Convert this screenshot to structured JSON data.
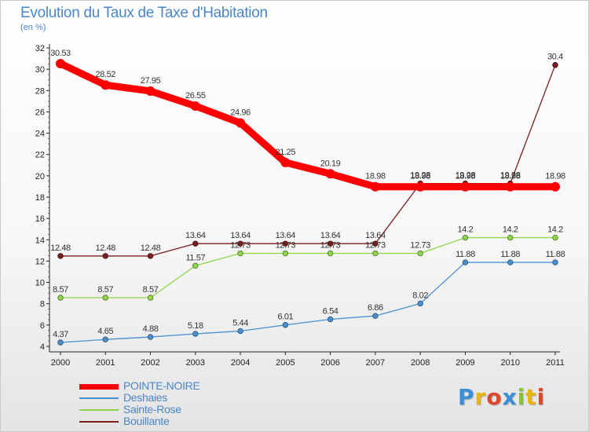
{
  "title": "Evolution du Taux de Taxe d'Habitation",
  "unit": "(en %)",
  "brand": {
    "letters": [
      {
        "ch": "P",
        "color": "#3a8fd6"
      },
      {
        "ch": "r",
        "color": "#e8b410"
      },
      {
        "ch": "o",
        "color": "#d94a2a"
      },
      {
        "ch": "x",
        "color": "#3a8fd6"
      },
      {
        "ch": "i",
        "color": "#8ac43e"
      },
      {
        "ch": "t",
        "color": "#e8b410"
      },
      {
        "ch": "i",
        "color": "#d94a2a"
      }
    ]
  },
  "chart_data": {
    "type": "line",
    "title": "Evolution du Taux de Taxe d'Habitation",
    "ylabel": "(en %)",
    "xlabel": "",
    "ylim": [
      4,
      32
    ],
    "yticks": [
      4,
      6,
      8,
      10,
      12,
      14,
      16,
      18,
      20,
      22,
      24,
      26,
      28,
      30,
      32
    ],
    "x": [
      "2000",
      "2001",
      "2002",
      "2003",
      "2004",
      "2005",
      "2006",
      "2007",
      "2008",
      "2009",
      "2010",
      "2011"
    ],
    "grid": false,
    "legend_position": "bottom-left",
    "series": [
      {
        "name": "Bouillante",
        "color": "#7a1e1e",
        "values": [
          12.48,
          12.48,
          12.48,
          13.64,
          13.64,
          13.64,
          13.64,
          13.64,
          19.28,
          19.28,
          19.28,
          30.4
        ],
        "labels": [
          "12.48",
          "12.48",
          "12.48",
          "13.64",
          "13.64",
          "13.64",
          "13.64",
          "13.64",
          "19.28",
          "19.28",
          "19.28",
          "30.4"
        ]
      },
      {
        "name": "Sainte-Rose",
        "color": "#8fd44a",
        "values": [
          8.57,
          8.57,
          8.57,
          11.57,
          12.73,
          12.73,
          12.73,
          12.73,
          12.73,
          14.2,
          14.2,
          14.2
        ],
        "labels": [
          "8.57",
          "8.57",
          "8.57",
          "11.57",
          "12.73",
          "12.73",
          "12.73",
          "12.73",
          "12.73",
          "14.2",
          "14.2",
          "14.2"
        ]
      },
      {
        "name": "Deshaies",
        "color": "#4a90d0",
        "values": [
          4.37,
          4.65,
          4.88,
          5.18,
          5.44,
          6.01,
          6.54,
          6.86,
          8.02,
          11.88,
          11.88,
          11.88
        ],
        "labels": [
          "4.37",
          "4.65",
          "4.88",
          "5.18",
          "5.44",
          "6.01",
          "6.54",
          "6.86",
          "8.02",
          "11.88",
          "11.88",
          "11.88"
        ]
      },
      {
        "name": "POINTE-NOIRE",
        "color": "#ff0000",
        "values": [
          30.53,
          28.52,
          27.95,
          26.55,
          24.96,
          21.25,
          20.19,
          18.98,
          18.98,
          18.98,
          18.98,
          18.98
        ],
        "labels": [
          "30.53",
          "28.52",
          "27.95",
          "26.55",
          "24.96",
          "21.25",
          "20.19",
          "18.98",
          "18.98",
          "18.98",
          "18.98",
          "18.98"
        ]
      }
    ],
    "legend": [
      {
        "name": "POINTE-NOIRE",
        "color": "#ff0000"
      },
      {
        "name": "Deshaies",
        "color": "#4a90d0"
      },
      {
        "name": "Sainte-Rose",
        "color": "#8fd44a"
      },
      {
        "name": "Bouillante",
        "color": "#7a1e1e"
      }
    ]
  }
}
